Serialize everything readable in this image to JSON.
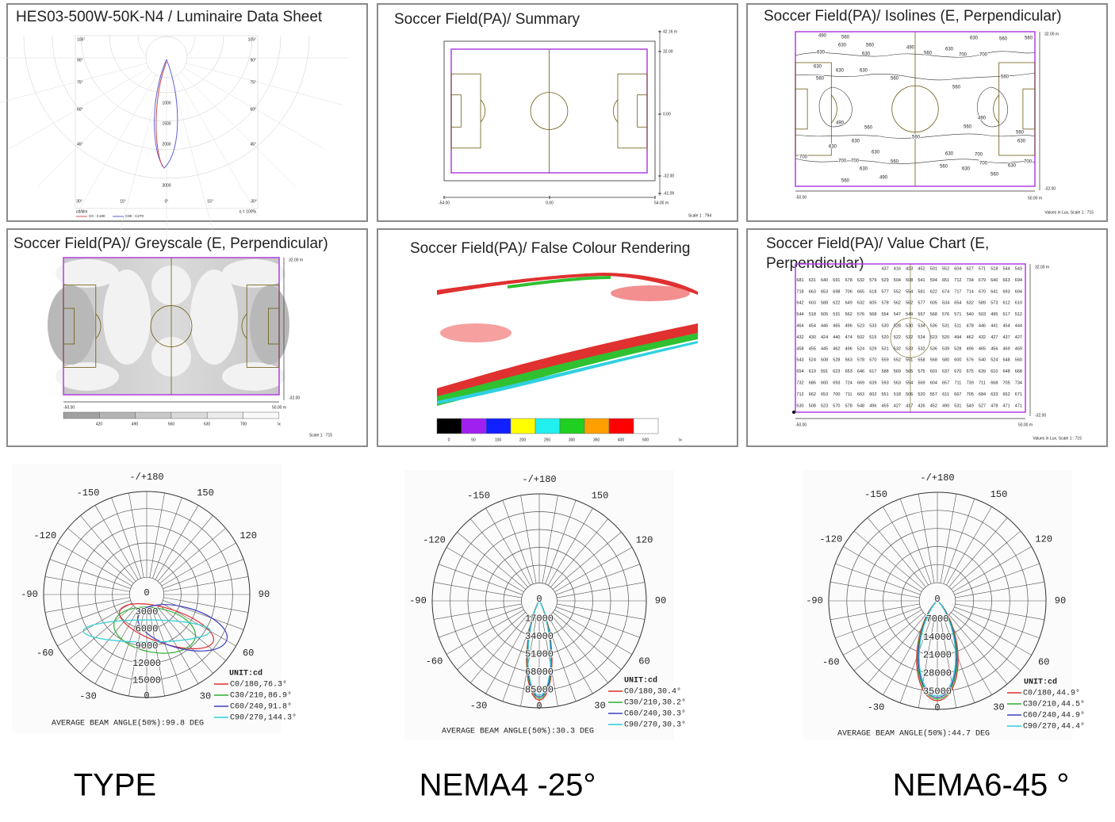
{
  "luminaire": {
    "title": "HES03-500W-50K-N4 / Luminaire Data Sheet",
    "angle_labels": [
      "105°",
      "90°",
      "75°",
      "60°",
      "45°"
    ],
    "bottom_labels": [
      "30°",
      "15°",
      "0°",
      "15°",
      "30°"
    ],
    "intensity_labels": [
      "1000",
      "1500",
      "2000",
      "3000"
    ],
    "unit": "cd/klm",
    "legend": [
      "C0 - C180",
      "C90 - C270"
    ],
    "efficiency": "η = 100%"
  },
  "summary": {
    "title": "Soccer Field(PA)/ Summary",
    "y_labels": [
      "42.16 m",
      "32.00",
      "0.00",
      "-32.00",
      "-41.09"
    ],
    "x_labels": [
      "-54.00",
      "0.00",
      "54.00 m"
    ],
    "scale": "Scale 1 : 794"
  },
  "isolines": {
    "title": "Soccer Field(PA)/ Isolines (E, Perpendicular)",
    "contour_labels": [
      "490",
      "560",
      "630",
      "560",
      "630",
      "490",
      "560",
      "630",
      "700",
      "700",
      "630",
      "560",
      "560",
      "630",
      "630",
      "630",
      "630",
      "560",
      "560",
      "560",
      "560",
      "490",
      "560",
      "560",
      "490",
      "560",
      "560",
      "630",
      "630",
      "630",
      "700",
      "700",
      "630",
      "560",
      "490",
      "560",
      "700",
      "630",
      "700",
      "700",
      "630",
      "560",
      "630",
      "700",
      "560",
      "630"
    ],
    "y_labels": [
      "32.00 m",
      "-32.00"
    ],
    "x_labels": [
      "-50.00",
      "50.00 m"
    ],
    "note": "Values in Lux, Scale 1 : 715"
  },
  "greyscale": {
    "title": "Soccer Field(PA)/ Greyscale (E, Perpendicular)",
    "y_labels": [
      "32.00 m",
      "-32.00"
    ],
    "x_labels": [
      "-50.00",
      "50.00 m"
    ],
    "legend": [
      "420",
      "490",
      "560",
      "630",
      "700",
      "lx"
    ],
    "scale": "Scale 1 : 715"
  },
  "false_colour": {
    "title": "Soccer Field(PA)/ False Colour Rendering",
    "legend": [
      "0",
      "50",
      "100",
      "200",
      "250",
      "300",
      "350",
      "400",
      "500",
      "lx"
    ]
  },
  "value_chart": {
    "title_lines": [
      "Soccer Field(PA)/ Value Chart (E,",
      "Perpendicular)"
    ],
    "rows": [
      [
        "437",
        "416",
        "423",
        "452",
        "501",
        "552",
        "604",
        "627",
        "571",
        "518",
        "544",
        "543"
      ],
      [
        "681",
        "631",
        "640",
        "691",
        "678",
        "632",
        "579",
        "529",
        "504",
        "508",
        "541",
        "594",
        "651",
        "712",
        "734",
        "679",
        "640",
        "663",
        "694"
      ],
      [
        "718",
        "663",
        "653",
        "698",
        "706",
        "665",
        "618",
        "577",
        "552",
        "554",
        "581",
        "622",
        "674",
        "717",
        "714",
        "670",
        "641",
        "693",
        "694"
      ],
      [
        "642",
        "603",
        "588",
        "622",
        "649",
        "632",
        "605",
        "578",
        "562",
        "562",
        "577",
        "605",
        "634",
        "654",
        "632",
        "589",
        "573",
        "612",
        "610"
      ],
      [
        "544",
        "518",
        "505",
        "531",
        "562",
        "576",
        "568",
        "554",
        "547",
        "549",
        "557",
        "568",
        "576",
        "571",
        "540",
        "503",
        "495",
        "517",
        "512"
      ],
      [
        "464",
        "454",
        "446",
        "465",
        "496",
        "523",
        "533",
        "530",
        "528",
        "530",
        "534",
        "536",
        "531",
        "511",
        "478",
        "446",
        "441",
        "454",
        "444"
      ],
      [
        "432",
        "430",
        "424",
        "440",
        "474",
        "502",
        "515",
        "520",
        "522",
        "522",
        "524",
        "523",
        "520",
        "494",
        "462",
        "432",
        "427",
        "437",
        "427"
      ],
      [
        "458",
        "455",
        "445",
        "462",
        "496",
        "524",
        "529",
        "531",
        "532",
        "533",
        "532",
        "536",
        "539",
        "528",
        "496",
        "465",
        "456",
        "469",
        "469"
      ],
      [
        "543",
        "524",
        "508",
        "528",
        "563",
        "578",
        "570",
        "559",
        "552",
        "551",
        "558",
        "568",
        "580",
        "600",
        "576",
        "540",
        "524",
        "548",
        "560"
      ],
      [
        "654",
        "619",
        "591",
        "623",
        "653",
        "646",
        "617",
        "588",
        "569",
        "565",
        "575",
        "601",
        "637",
        "670",
        "675",
        "639",
        "610",
        "648",
        "668"
      ],
      [
        "732",
        "686",
        "660",
        "693",
        "724",
        "669",
        "639",
        "593",
        "563",
        "554",
        "569",
        "604",
        "657",
        "711",
        "739",
        "711",
        "668",
        "705",
        "734"
      ],
      [
        "712",
        "662",
        "653",
        "700",
        "711",
        "663",
        "602",
        "551",
        "518",
        "506",
        "520",
        "557",
        "611",
        "667",
        "705",
        "684",
        "633",
        "652",
        "671"
      ],
      [
        "530",
        "508",
        "523",
        "570",
        "578",
        "548",
        "496",
        "455",
        "427",
        "417",
        "426",
        "452",
        "490",
        "531",
        "549",
        "527",
        "478",
        "471",
        "471"
      ]
    ],
    "y_labels": [
      "32.00 m",
      "-32.00"
    ],
    "x_labels": [
      "-50.00",
      "50.00 m"
    ],
    "note": "Values in Lux, Scale 1 : 715"
  },
  "polar_charts": [
    {
      "angle_ticks": [
        {
          "value": 180,
          "label": "-/+180"
        },
        150,
        120,
        90,
        60,
        30,
        {
          "value": 0,
          "label": "0"
        },
        -30,
        -60,
        -90,
        -120,
        -150
      ],
      "radial_ticks": [
        0,
        3000,
        6000,
        9000,
        12000,
        15000
      ],
      "unit": "UNIT:cd",
      "legend": [
        "C0/180,76.3°",
        "C30/210,86.9°",
        "C60/240,91.8°",
        "C90/270,144.3°"
      ],
      "colors": [
        "#e03030",
        "#30b030",
        "#4040c0",
        "#30d0d8"
      ],
      "beam": "AVERAGE BEAM ANGLE(50%):99.8 DEG",
      "caption": "TYPE"
    },
    {
      "angle_ticks": [
        {
          "value": 180,
          "label": "-/+180"
        },
        150,
        120,
        90,
        60,
        30,
        {
          "value": 0,
          "label": "0"
        },
        -30,
        -60,
        -90,
        -120,
        -150
      ],
      "radial_ticks": [
        0,
        17000,
        34000,
        51000,
        68000,
        85000
      ],
      "unit": "UNIT:cd",
      "legend": [
        "C0/180,30.4°",
        "C30/210,30.2°",
        "C60/240,30.3°",
        "C90/270,30.3°"
      ],
      "colors": [
        "#e03030",
        "#30b030",
        "#4040c0",
        "#30d0d8"
      ],
      "beam": "AVERAGE BEAM ANGLE(50%):30.3 DEG",
      "caption": "NEMA4 -25°"
    },
    {
      "angle_ticks": [
        {
          "value": 180,
          "label": "-/+180"
        },
        150,
        120,
        90,
        60,
        30,
        {
          "value": 0,
          "label": "0"
        },
        -30,
        -60,
        -90,
        -120,
        -150
      ],
      "radial_ticks": [
        0,
        7000,
        14000,
        21000,
        28000,
        35000
      ],
      "unit": "UNIT:cd",
      "legend": [
        "C0/180,44.9°",
        "C30/210,44.5°",
        "C60/240,44.9°",
        "C90/270,44.4°"
      ],
      "colors": [
        "#e03030",
        "#30b030",
        "#4040c0",
        "#30d0d8"
      ],
      "beam": "AVERAGE BEAM ANGLE(50%):44.7 DEG",
      "caption": "NEMA6-45 °"
    }
  ]
}
